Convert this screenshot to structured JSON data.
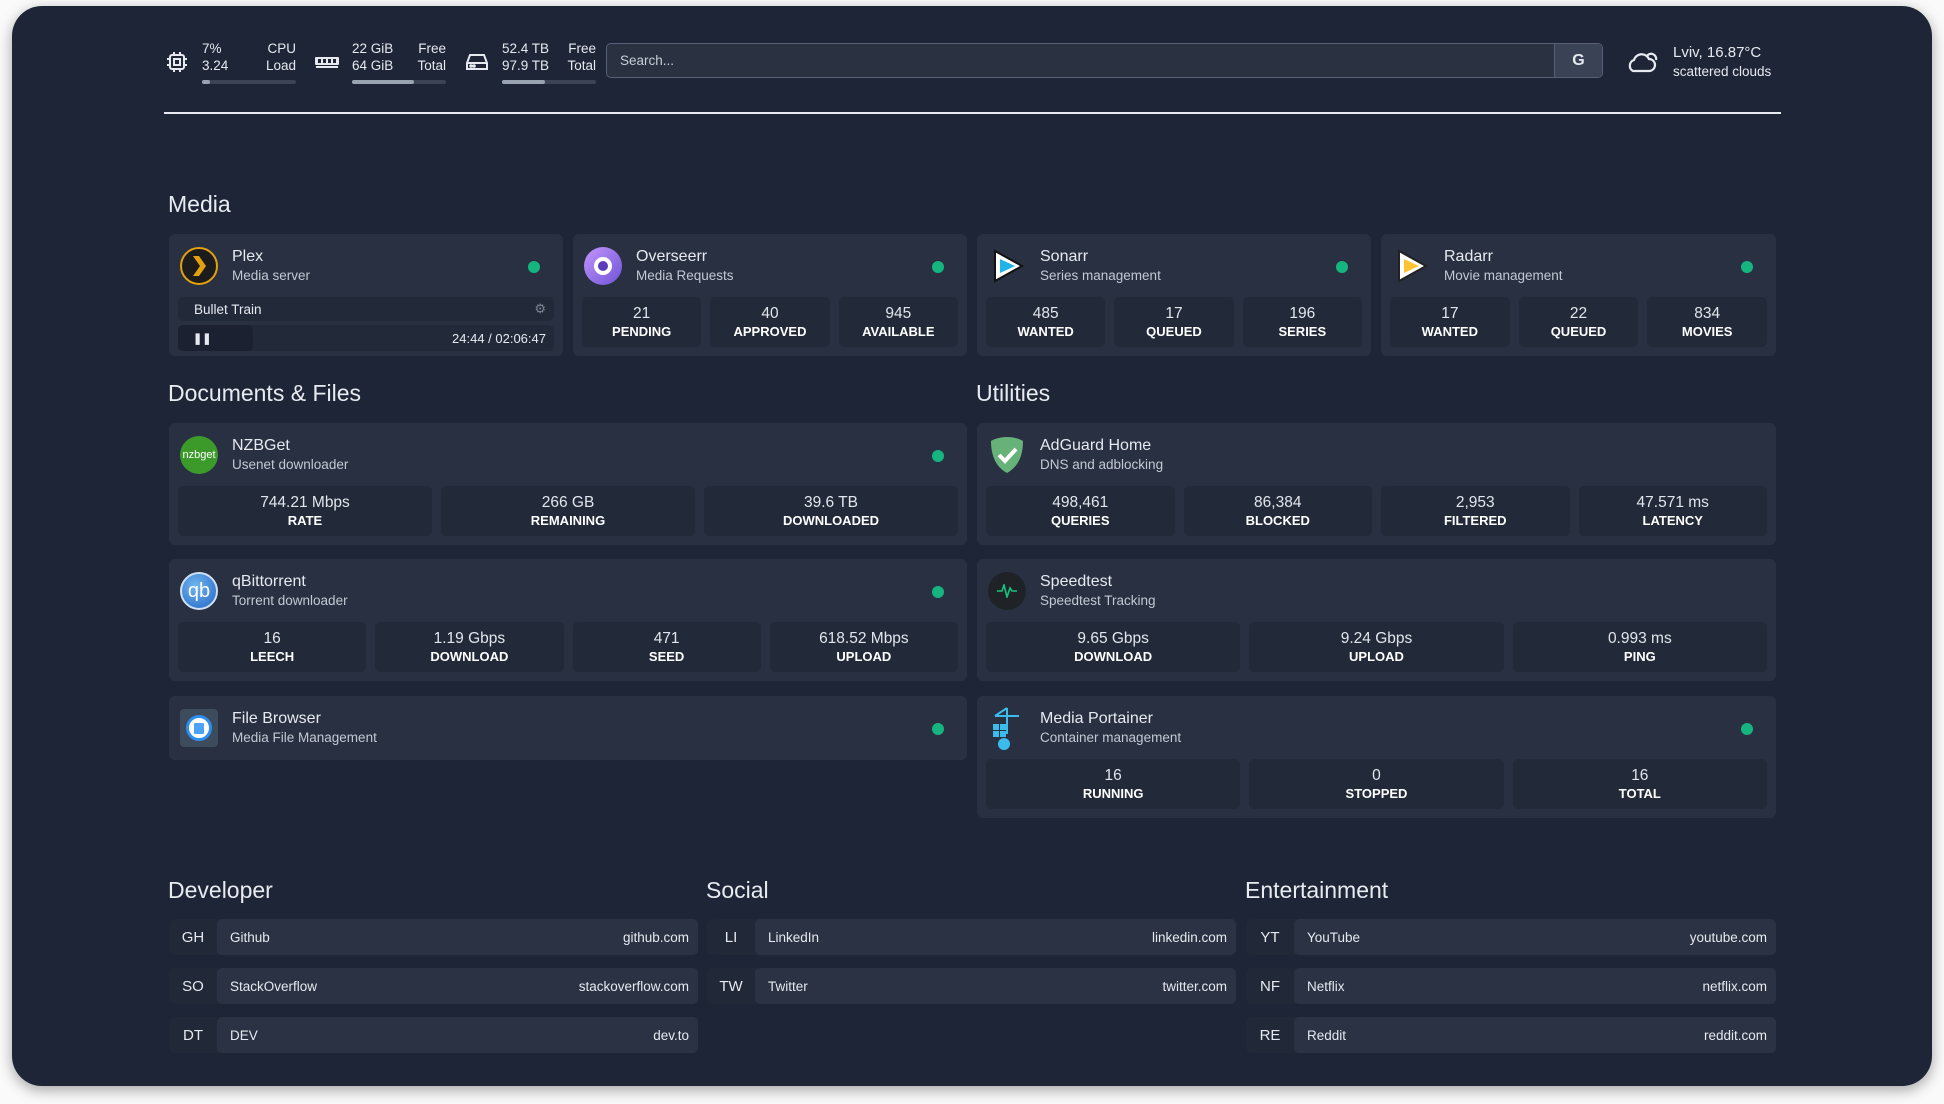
{
  "resources": {
    "cpu": {
      "line1_value": "7%",
      "line1_label": "CPU",
      "line2_value": "3.24",
      "line2_label": "Load",
      "usage_percent": 7
    },
    "memory": {
      "line1_value": "22 GiB",
      "line1_label": "Free",
      "line2_value": "64 GiB",
      "line2_label": "Total",
      "usage_percent": 66
    },
    "disk": {
      "line1_value": "52.4 TB",
      "line1_label": "Free",
      "line2_value": "97.9 TB",
      "line2_label": "Total",
      "usage_percent": 46
    }
  },
  "search": {
    "placeholder": "Search...",
    "button_label": "G"
  },
  "weather": {
    "location_temp": "Lviv, 16.87°C",
    "condition": "scattered clouds"
  },
  "status_color": "#16b57f",
  "sections": {
    "media": "Media",
    "documents": "Documents & Files",
    "utilities": "Utilities",
    "developer": "Developer",
    "social": "Social",
    "entertainment": "Entertainment"
  },
  "media": {
    "plex": {
      "title": "Plex",
      "subtitle": "Media server",
      "now_playing": "Bullet Train",
      "time": "24:44 / 02:06:47",
      "state": "paused"
    },
    "overseerr": {
      "title": "Overseerr",
      "subtitle": "Media Requests",
      "stats": [
        {
          "value": "21",
          "label": "PENDING"
        },
        {
          "value": "40",
          "label": "APPROVED"
        },
        {
          "value": "945",
          "label": "AVAILABLE"
        }
      ]
    },
    "sonarr": {
      "title": "Sonarr",
      "subtitle": "Series management",
      "stats": [
        {
          "value": "485",
          "label": "WANTED"
        },
        {
          "value": "17",
          "label": "QUEUED"
        },
        {
          "value": "196",
          "label": "SERIES"
        }
      ]
    },
    "radarr": {
      "title": "Radarr",
      "subtitle": "Movie management",
      "stats": [
        {
          "value": "17",
          "label": "WANTED"
        },
        {
          "value": "22",
          "label": "QUEUED"
        },
        {
          "value": "834",
          "label": "MOVIES"
        }
      ]
    }
  },
  "documents": {
    "nzbget": {
      "title": "NZBGet",
      "subtitle": "Usenet downloader",
      "icon_text": "nzbget",
      "stats": [
        {
          "value": "744.21 Mbps",
          "label": "RATE"
        },
        {
          "value": "266 GB",
          "label": "REMAINING"
        },
        {
          "value": "39.6 TB",
          "label": "DOWNLOADED"
        }
      ]
    },
    "qbittorrent": {
      "title": "qBittorrent",
      "subtitle": "Torrent downloader",
      "icon_text": "qb",
      "stats": [
        {
          "value": "16",
          "label": "LEECH"
        },
        {
          "value": "1.19 Gbps",
          "label": "DOWNLOAD"
        },
        {
          "value": "471",
          "label": "SEED"
        },
        {
          "value": "618.52 Mbps",
          "label": "UPLOAD"
        }
      ]
    },
    "filebrowser": {
      "title": "File Browser",
      "subtitle": "Media File Management"
    }
  },
  "utilities": {
    "adguard": {
      "title": "AdGuard Home",
      "subtitle": "DNS and adblocking",
      "stats": [
        {
          "value": "498,461",
          "label": "QUERIES"
        },
        {
          "value": "86,384",
          "label": "BLOCKED"
        },
        {
          "value": "2,953",
          "label": "FILTERED"
        },
        {
          "value": "47.571 ms",
          "label": "LATENCY"
        }
      ]
    },
    "speedtest": {
      "title": "Speedtest",
      "subtitle": "Speedtest Tracking",
      "stats": [
        {
          "value": "9.65 Gbps",
          "label": "DOWNLOAD"
        },
        {
          "value": "9.24 Gbps",
          "label": "UPLOAD"
        },
        {
          "value": "0.993 ms",
          "label": "PING"
        }
      ]
    },
    "portainer": {
      "title": "Media Portainer",
      "subtitle": "Container management",
      "stats": [
        {
          "value": "16",
          "label": "RUNNING"
        },
        {
          "value": "0",
          "label": "STOPPED"
        },
        {
          "value": "16",
          "label": "TOTAL"
        }
      ]
    }
  },
  "bookmarks": {
    "developer": [
      {
        "abbr": "GH",
        "name": "Github",
        "url": "github.com"
      },
      {
        "abbr": "SO",
        "name": "StackOverflow",
        "url": "stackoverflow.com"
      },
      {
        "abbr": "DT",
        "name": "DEV",
        "url": "dev.to"
      }
    ],
    "social": [
      {
        "abbr": "LI",
        "name": "LinkedIn",
        "url": "linkedin.com"
      },
      {
        "abbr": "TW",
        "name": "Twitter",
        "url": "twitter.com"
      }
    ],
    "entertainment": [
      {
        "abbr": "YT",
        "name": "YouTube",
        "url": "youtube.com"
      },
      {
        "abbr": "NF",
        "name": "Netflix",
        "url": "netflix.com"
      },
      {
        "abbr": "RE",
        "name": "Reddit",
        "url": "reddit.com"
      }
    ]
  }
}
